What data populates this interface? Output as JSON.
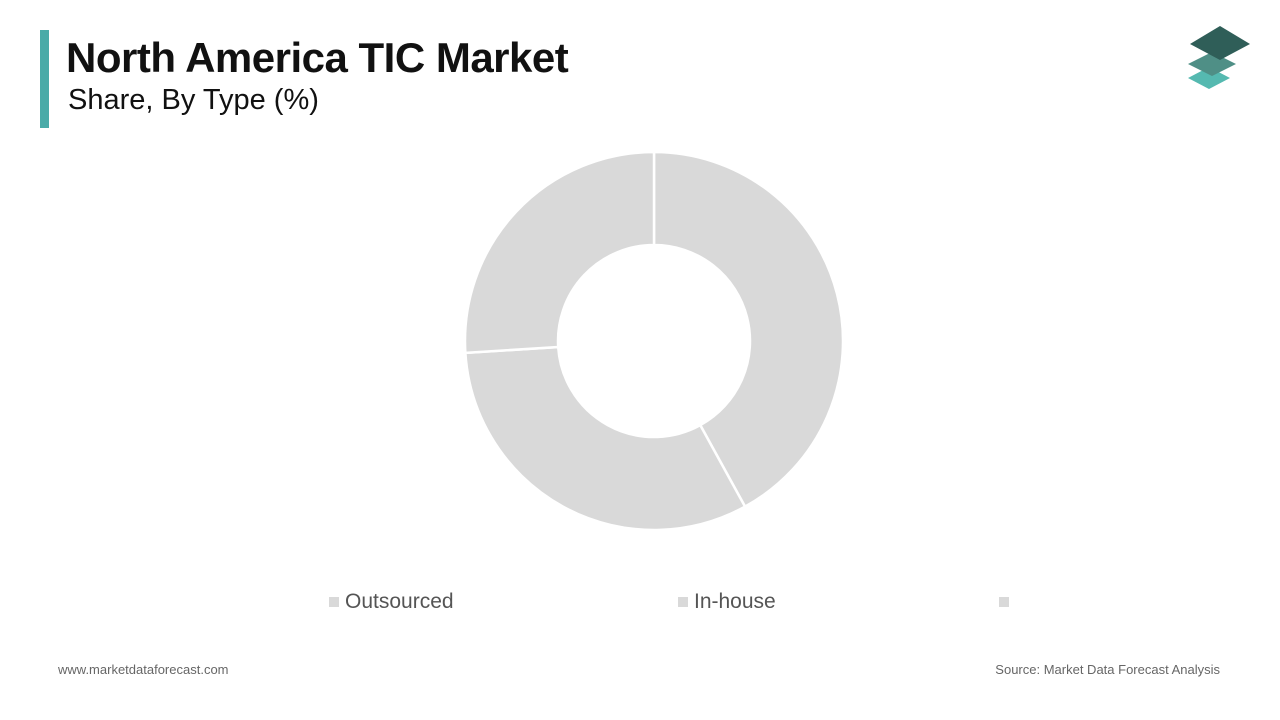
{
  "header": {
    "title": "North America TIC Market",
    "subtitle": "Share, By Type (%)",
    "accent_color": "#4aaba8"
  },
  "logo": {
    "icon": "stacked-layers-logo-icon",
    "colors": [
      "#2f5e58",
      "#4f8f86",
      "#55b9b0"
    ]
  },
  "chart_data": {
    "type": "pie",
    "donut": true,
    "slices": [
      {
        "label": "Outsourced",
        "value": 42,
        "color": "#d9d9d9"
      },
      {
        "label": "In-house",
        "value": 32,
        "color": "#d9d9d9"
      },
      {
        "label": "",
        "value": 26,
        "color": "#d9d9d9"
      }
    ],
    "start_angle_deg": 0,
    "separator_color": "#ffffff",
    "legend_position": "bottom",
    "legend_swatch_color": "#d9d9d9"
  },
  "footer": {
    "website": "www.marketdataforecast.com",
    "source": "Source: Market Data Forecast Analysis"
  }
}
